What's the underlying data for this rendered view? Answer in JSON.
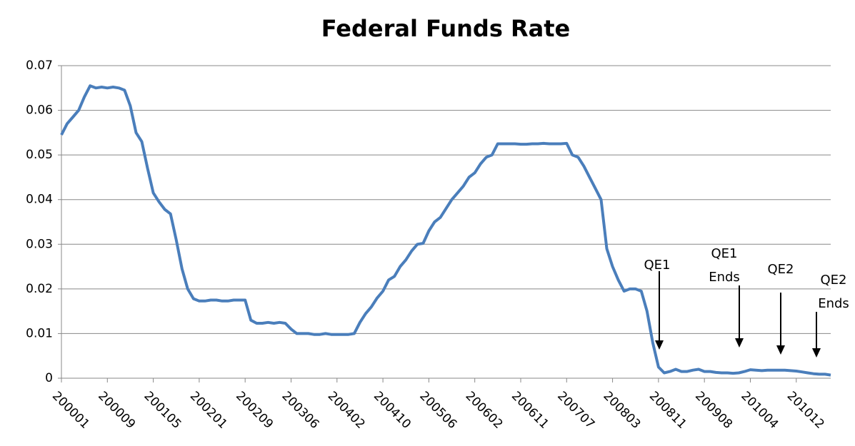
{
  "chart_data": {
    "type": "line",
    "title": "Federal Funds Rate",
    "categories": [
      "200001",
      null,
      null,
      null,
      null,
      null,
      null,
      null,
      "200009",
      null,
      null,
      null,
      null,
      null,
      null,
      null,
      "200105",
      null,
      null,
      null,
      null,
      null,
      null,
      null,
      "200201",
      null,
      null,
      null,
      null,
      null,
      null,
      null,
      "200209",
      null,
      null,
      null,
      null,
      null,
      null,
      null,
      "200306",
      null,
      null,
      null,
      null,
      null,
      null,
      null,
      "200402",
      null,
      null,
      null,
      null,
      null,
      null,
      null,
      "200410",
      null,
      null,
      null,
      null,
      null,
      null,
      null,
      "200506",
      null,
      null,
      null,
      null,
      null,
      null,
      null,
      "200602",
      null,
      null,
      null,
      null,
      null,
      null,
      null,
      "200611",
      null,
      null,
      null,
      null,
      null,
      null,
      null,
      "200707",
      null,
      null,
      null,
      null,
      null,
      null,
      null,
      "200803",
      null,
      null,
      null,
      null,
      null,
      null,
      null,
      "200811",
      null,
      null,
      null,
      null,
      null,
      null,
      null,
      "200908",
      null,
      null,
      null,
      null,
      null,
      null,
      null,
      "201004",
      null,
      null,
      null,
      null,
      null,
      null,
      null,
      "201012",
      null,
      null,
      null,
      null,
      null,
      null
    ],
    "series": [
      {
        "color": "#4a7ebb",
        "values": [
          0.0545,
          0.057,
          0.0585,
          0.06,
          0.063,
          0.0655,
          0.065,
          0.0652,
          0.065,
          0.0652,
          0.065,
          0.0645,
          0.061,
          0.055,
          0.053,
          0.047,
          0.0415,
          0.0395,
          0.0378,
          0.0368,
          0.031,
          0.0245,
          0.02,
          0.0178,
          0.0173,
          0.0173,
          0.0175,
          0.0175,
          0.0173,
          0.0173,
          0.0175,
          0.0175,
          0.0175,
          0.013,
          0.0123,
          0.0123,
          0.0125,
          0.0123,
          0.0125,
          0.0123,
          0.011,
          0.01,
          0.01,
          0.01,
          0.0098,
          0.0098,
          0.01,
          0.0098,
          0.0098,
          0.0098,
          0.0098,
          0.01,
          0.0125,
          0.0145,
          0.016,
          0.018,
          0.0195,
          0.022,
          0.0228,
          0.025,
          0.0265,
          0.0285,
          0.03,
          0.0302,
          0.033,
          0.035,
          0.036,
          0.038,
          0.04,
          0.0415,
          0.043,
          0.045,
          0.046,
          0.048,
          0.0495,
          0.05,
          0.0525,
          0.0525,
          0.0525,
          0.0525,
          0.0524,
          0.0524,
          0.0525,
          0.0525,
          0.0526,
          0.0525,
          0.0525,
          0.0525,
          0.0526,
          0.05,
          0.0495,
          0.0475,
          0.045,
          0.0425,
          0.04,
          0.029,
          0.025,
          0.022,
          0.0195,
          0.02,
          0.02,
          0.0195,
          0.015,
          0.008,
          0.0025,
          0.0012,
          0.0015,
          0.002,
          0.0015,
          0.0015,
          0.0018,
          0.002,
          0.0015,
          0.0015,
          0.0013,
          0.0012,
          0.0012,
          0.0011,
          0.0012,
          0.0015,
          0.0019,
          0.0018,
          0.0017,
          0.0018,
          0.0018,
          0.0018,
          0.0018,
          0.0017,
          0.0016,
          0.0014,
          0.0012,
          0.001,
          0.0009,
          0.0009,
          0.0007
        ]
      }
    ],
    "ylim": [
      0,
      0.07
    ],
    "yticks": [
      0,
      0.01,
      0.02,
      0.03,
      0.04,
      0.05,
      0.06,
      0.07
    ],
    "grid": true,
    "annotations": [
      {
        "lines": [
          "QE1"
        ]
      },
      {
        "lines": [
          "QE1",
          "Ends"
        ]
      },
      {
        "lines": [
          "QE2"
        ]
      },
      {
        "lines": [
          "QE2",
          "Ends"
        ]
      }
    ]
  }
}
